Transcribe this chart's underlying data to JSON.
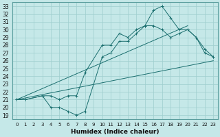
{
  "xlabel": "Humidex (Indice chaleur)",
  "xlim": [
    -0.5,
    23.5
  ],
  "ylim": [
    18.5,
    33.5
  ],
  "yticks": [
    19,
    20,
    21,
    22,
    23,
    24,
    25,
    26,
    27,
    28,
    29,
    30,
    31,
    32,
    33
  ],
  "xticks": [
    0,
    1,
    2,
    3,
    4,
    5,
    6,
    7,
    8,
    9,
    10,
    11,
    12,
    13,
    14,
    15,
    16,
    17,
    18,
    19,
    20,
    21,
    22,
    23
  ],
  "bg_color": "#c5e8e8",
  "grid_color": "#9ecece",
  "line_color": "#1a6e6e",
  "line1_x": [
    0,
    1,
    3,
    4,
    5,
    6,
    7,
    8,
    10,
    11,
    12,
    13,
    14,
    15,
    16,
    17,
    18,
    19,
    20,
    21,
    22,
    23
  ],
  "line1_y": [
    21,
    21,
    21.5,
    20,
    20,
    19.5,
    19,
    19.5,
    26.5,
    27,
    28.5,
    28.5,
    29.5,
    30.5,
    30.5,
    30,
    29,
    29.5,
    30,
    29,
    27.5,
    26.5
  ],
  "line2_x": [
    0,
    1,
    3,
    4,
    5,
    6,
    7,
    8,
    10,
    11,
    12,
    13,
    14,
    15,
    16,
    17,
    18,
    19,
    20,
    21,
    22,
    23
  ],
  "line2_y": [
    21,
    21,
    21.5,
    21.5,
    21,
    21.5,
    21.5,
    24.5,
    28,
    28,
    29.5,
    29,
    30,
    30.5,
    32.5,
    33,
    31.5,
    30,
    30,
    29,
    27,
    26.5
  ],
  "line3_x": [
    0,
    23
  ],
  "line3_y": [
    21,
    26
  ],
  "line4_x": [
    0,
    20
  ],
  "line4_y": [
    21,
    30.5
  ]
}
